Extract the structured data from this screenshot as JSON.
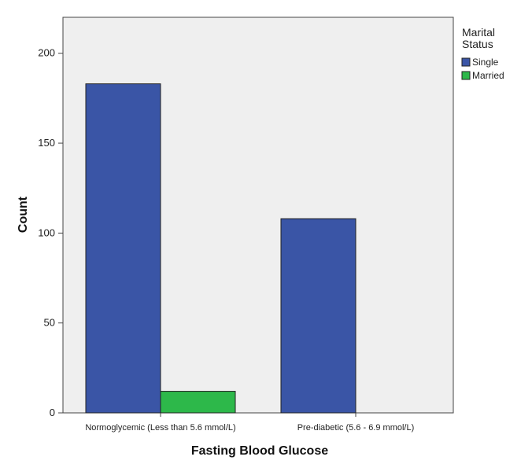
{
  "chart_data": {
    "type": "bar",
    "title": "",
    "xlabel": "Fasting Blood Glucose",
    "ylabel": "Count",
    "categories": [
      "Normoglycemic (Less than 5.6 mmol/L)",
      "Pre-diabetic (5.6 - 6.9 mmol/L)"
    ],
    "series": [
      {
        "name": "Single",
        "values": [
          183,
          108
        ],
        "color": "#3a55a6"
      },
      {
        "name": "Married",
        "values": [
          12,
          0
        ],
        "color": "#2db84a"
      }
    ],
    "ylim": [
      0,
      220
    ],
    "yticks": [
      0,
      50,
      100,
      150,
      200
    ],
    "legend": {
      "title_line1": "Marital",
      "title_line2": "Status",
      "placement": "right"
    },
    "grid": false,
    "plot_background": "#efefef"
  }
}
